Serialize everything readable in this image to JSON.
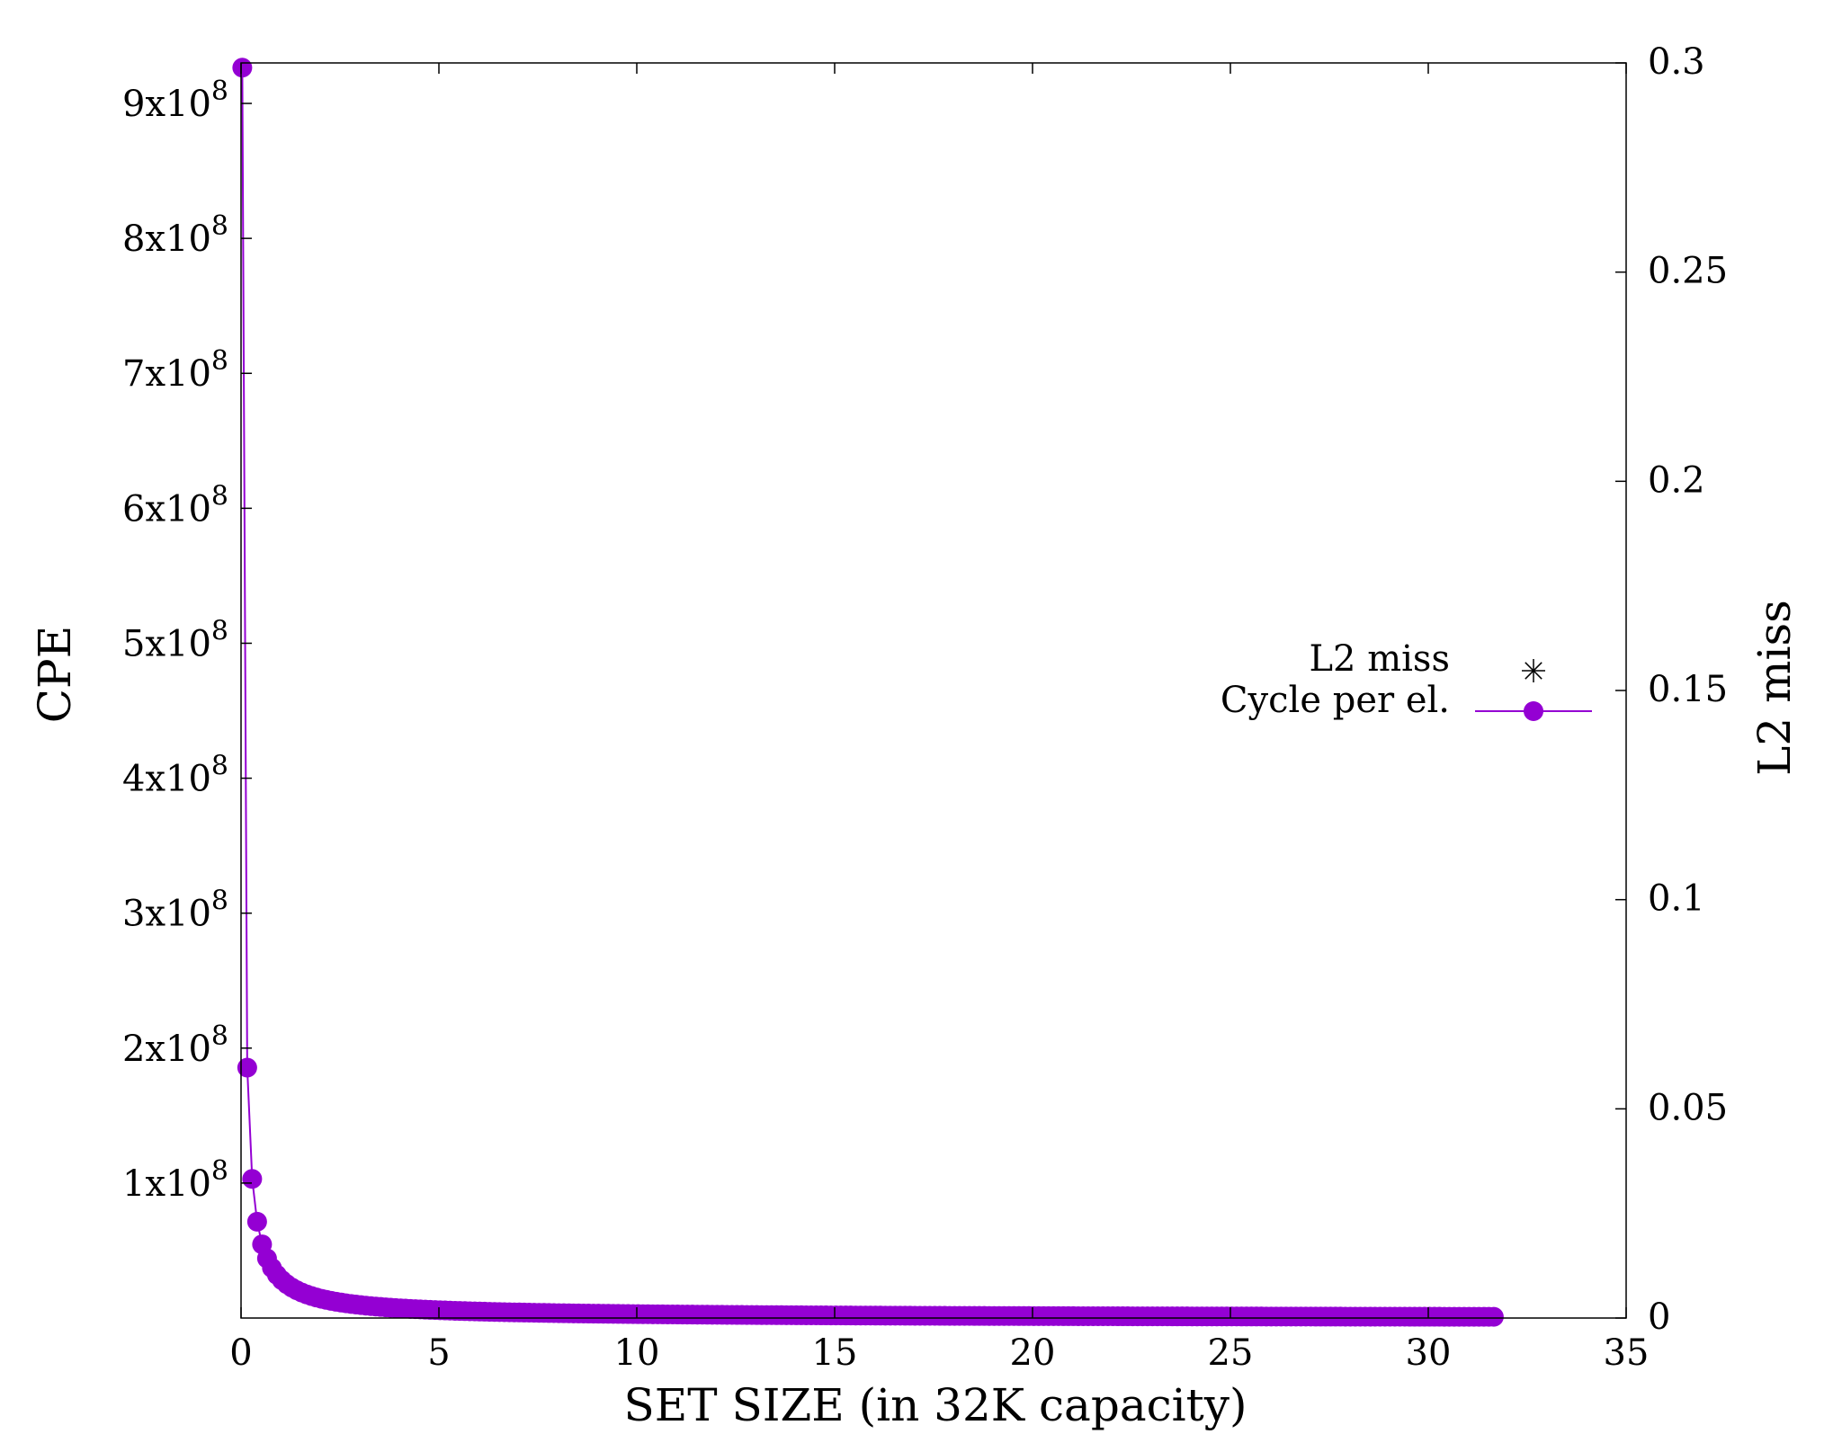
{
  "chart_data": {
    "type": "scatter",
    "xlabel": "SET SIZE (in 32K capacity)",
    "ylabel": "CPE",
    "y2label": "L2 miss",
    "xlim": [
      0,
      35
    ],
    "ylim": [
      0,
      930000000
    ],
    "y2lim": [
      0,
      0.3
    ],
    "x_ticks": [
      0,
      5,
      10,
      15,
      20,
      25,
      30,
      35
    ],
    "y_ticks": [
      {
        "value": 100000000,
        "base": "1x10",
        "exp": "8"
      },
      {
        "value": 200000000,
        "base": "2x10",
        "exp": "8"
      },
      {
        "value": 300000000,
        "base": "3x10",
        "exp": "8"
      },
      {
        "value": 400000000,
        "base": "4x10",
        "exp": "8"
      },
      {
        "value": 500000000,
        "base": "5x10",
        "exp": "8"
      },
      {
        "value": 600000000,
        "base": "6x10",
        "exp": "8"
      },
      {
        "value": 700000000,
        "base": "7x10",
        "exp": "8"
      },
      {
        "value": 800000000,
        "base": "8x10",
        "exp": "8"
      },
      {
        "value": 900000000,
        "base": "9x10",
        "exp": "8"
      }
    ],
    "y2_ticks": [
      "0",
      "0.05",
      "0.1",
      "0.15",
      "0.2",
      "0.25",
      "0.3"
    ],
    "y2_tick_values": [
      0,
      0.05,
      0.1,
      0.15,
      0.2,
      0.25,
      0.3
    ],
    "legend_position": "right",
    "series": [
      {
        "name": "L2 miss",
        "axis": "y2",
        "marker": "asterisk",
        "color": "#000000",
        "values": []
      },
      {
        "name": "Cycle per el.",
        "axis": "y",
        "marker": "circle",
        "color": "#9400d3",
        "curve": {
          "form": "k / x",
          "k": 29000000,
          "x_min": 0.0313,
          "x_max": 31.75,
          "step": 0.125
        }
      }
    ]
  }
}
